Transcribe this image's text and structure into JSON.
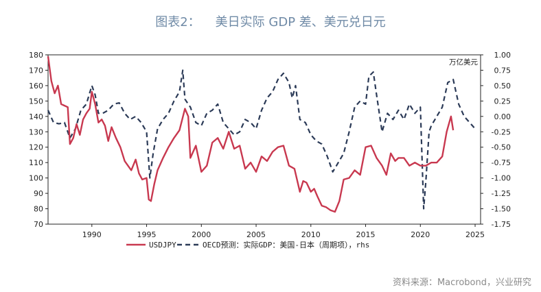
{
  "header": {
    "figure_label": "图表2：",
    "title": "美日实际 GDP 差、美元兑日元"
  },
  "footer": {
    "source": "资料来源：Macrobond，兴业研究"
  },
  "colors": {
    "usdjpy": "#c8384f",
    "oecd": "#2b3a57",
    "title": "#6f8aa6"
  },
  "chart_data": {
    "type": "line",
    "title": "美日实际 GDP 差、美元兑日元",
    "right_axis_unit": "万亿美元",
    "xlim": [
      1986,
      2025.5
    ],
    "x_ticks": [
      1990,
      1995,
      2000,
      2005,
      2010,
      2015,
      2020,
      2025
    ],
    "x_tick_labels": [
      "1990",
      "1995",
      "2000",
      "2005",
      "2010",
      "2015",
      "2020",
      "2025"
    ],
    "ylim_left": [
      70,
      180
    ],
    "y_left_ticks": [
      70,
      80,
      90,
      100,
      110,
      120,
      130,
      140,
      150,
      160,
      170,
      180
    ],
    "y_left_tick_labels": [
      "70",
      "80",
      "90",
      "100",
      "110",
      "120",
      "130",
      "140",
      "150",
      "160",
      "170",
      "180"
    ],
    "ylim_right": [
      -1.75,
      1.0
    ],
    "y_right_ticks": [
      1.0,
      0.75,
      0.5,
      0.25,
      0.0,
      -0.25,
      -0.5,
      -0.75,
      -1.0,
      -1.25,
      -1.5,
      -1.75
    ],
    "y_right_tick_labels": [
      "1.00",
      "0.75",
      "0.50",
      "0.25",
      "0.00",
      "-0.25",
      "-0.50",
      "-0.75",
      "-1.00",
      "-1.25",
      "-1.50",
      "-1.75"
    ],
    "legend_position": "bottom",
    "series": [
      {
        "name": "USDJPY",
        "axis": "left",
        "style": "solid",
        "x": [
          1986.0,
          1986.3,
          1986.6,
          1986.9,
          1987.2,
          1987.5,
          1987.8,
          1988.0,
          1988.3,
          1988.6,
          1988.9,
          1989.2,
          1989.5,
          1989.8,
          1990.0,
          1990.3,
          1990.6,
          1990.9,
          1991.2,
          1991.5,
          1991.8,
          1992.2,
          1992.6,
          1993.0,
          1993.3,
          1993.6,
          1994.0,
          1994.3,
          1994.6,
          1995.0,
          1995.2,
          1995.4,
          1995.7,
          1996.0,
          1996.5,
          1997.0,
          1997.5,
          1998.0,
          1998.5,
          1998.8,
          1999.0,
          1999.5,
          2000.0,
          2000.5,
          2001.0,
          2001.5,
          2002.0,
          2002.5,
          2003.0,
          2003.5,
          2004.0,
          2004.5,
          2005.0,
          2005.5,
          2006.0,
          2006.5,
          2007.0,
          2007.5,
          2008.0,
          2008.5,
          2009.0,
          2009.3,
          2009.6,
          2010.0,
          2010.3,
          2010.6,
          2011.0,
          2011.4,
          2011.8,
          2012.2,
          2012.6,
          2013.0,
          2013.5,
          2014.0,
          2014.5,
          2015.0,
          2015.5,
          2016.0,
          2016.5,
          2016.9,
          2017.3,
          2017.7,
          2018.0,
          2018.5,
          2019.0,
          2019.5,
          2020.0,
          2020.5,
          2021.0,
          2021.5,
          2022.0,
          2022.4,
          2022.8,
          2023.0
        ],
        "values": [
          179,
          163,
          155,
          160,
          148,
          147,
          146,
          122,
          126,
          135,
          128,
          138,
          142,
          145,
          156,
          148,
          136,
          138,
          134,
          124,
          133,
          126,
          120,
          111,
          108,
          105,
          112,
          103,
          99,
          100,
          86,
          85,
          96,
          105,
          113,
          120,
          126,
          131,
          145,
          140,
          113,
          121,
          104,
          108,
          123,
          126,
          119,
          130,
          119,
          121,
          106,
          110,
          104,
          114,
          111,
          117,
          120,
          121,
          108,
          106,
          91,
          98,
          97,
          91,
          93,
          88,
          82,
          81,
          79,
          78,
          85,
          99,
          100,
          105,
          102,
          120,
          121,
          113,
          108,
          102,
          116,
          111,
          113,
          113,
          108,
          110,
          108,
          108,
          110,
          110,
          114,
          130,
          140,
          131
        ]
      },
      {
        "name": "OECD预测：实际GDP：美国-日本（周期项），rhs",
        "axis": "right",
        "style": "dashed",
        "x": [
          1986.0,
          1986.5,
          1987.0,
          1987.5,
          1988.0,
          1988.5,
          1989.0,
          1989.5,
          1990.0,
          1990.3,
          1990.6,
          1991.0,
          1991.5,
          1992.0,
          1992.5,
          1993.0,
          1993.5,
          1994.0,
          1994.5,
          1995.0,
          1995.3,
          1995.6,
          1996.0,
          1996.5,
          1997.0,
          1997.5,
          1998.0,
          1998.3,
          1998.5,
          1998.8,
          1999.0,
          1999.5,
          2000.0,
          2000.5,
          2001.0,
          2001.5,
          2002.0,
          2002.5,
          2003.0,
          2003.5,
          2004.0,
          2004.5,
          2005.0,
          2005.5,
          2006.0,
          2006.5,
          2007.0,
          2007.5,
          2008.0,
          2008.3,
          2008.6,
          2009.0,
          2009.5,
          2010.0,
          2010.5,
          2011.0,
          2011.5,
          2012.0,
          2012.5,
          2013.0,
          2013.5,
          2014.0,
          2014.5,
          2015.0,
          2015.3,
          2015.7,
          2016.0,
          2016.5,
          2017.0,
          2017.5,
          2018.0,
          2018.5,
          2019.0,
          2019.5,
          2020.0,
          2020.3,
          2020.5,
          2020.8,
          2021.0,
          2021.5,
          2022.0,
          2022.5,
          2023.0,
          2023.5,
          2024.0,
          2024.5,
          2025.0
        ],
        "values": [
          0.1,
          -0.1,
          -0.12,
          -0.1,
          -0.35,
          -0.2,
          0.1,
          0.2,
          0.5,
          0.35,
          0.05,
          0.05,
          0.1,
          0.2,
          0.22,
          0.05,
          -0.05,
          0.0,
          -0.1,
          -0.25,
          -1.0,
          -0.6,
          -0.2,
          -0.05,
          0.05,
          0.25,
          0.4,
          0.75,
          0.28,
          0.2,
          0.15,
          -0.1,
          -0.15,
          0.05,
          0.1,
          0.2,
          -0.1,
          -0.2,
          -0.3,
          -0.25,
          -0.05,
          -0.1,
          -0.2,
          0.1,
          0.3,
          0.4,
          0.6,
          0.7,
          0.55,
          0.3,
          0.5,
          -0.05,
          -0.1,
          -0.3,
          -0.4,
          -0.45,
          -0.65,
          -0.9,
          -0.75,
          -0.6,
          -0.25,
          0.15,
          0.25,
          0.2,
          0.65,
          0.72,
          0.35,
          -0.25,
          0.05,
          -0.05,
          0.1,
          -0.05,
          0.2,
          0.05,
          0.15,
          -1.5,
          -1.05,
          -0.25,
          -0.15,
          0.0,
          0.15,
          0.55,
          0.6,
          0.2,
          0.0,
          -0.1,
          -0.2
        ]
      }
    ]
  }
}
